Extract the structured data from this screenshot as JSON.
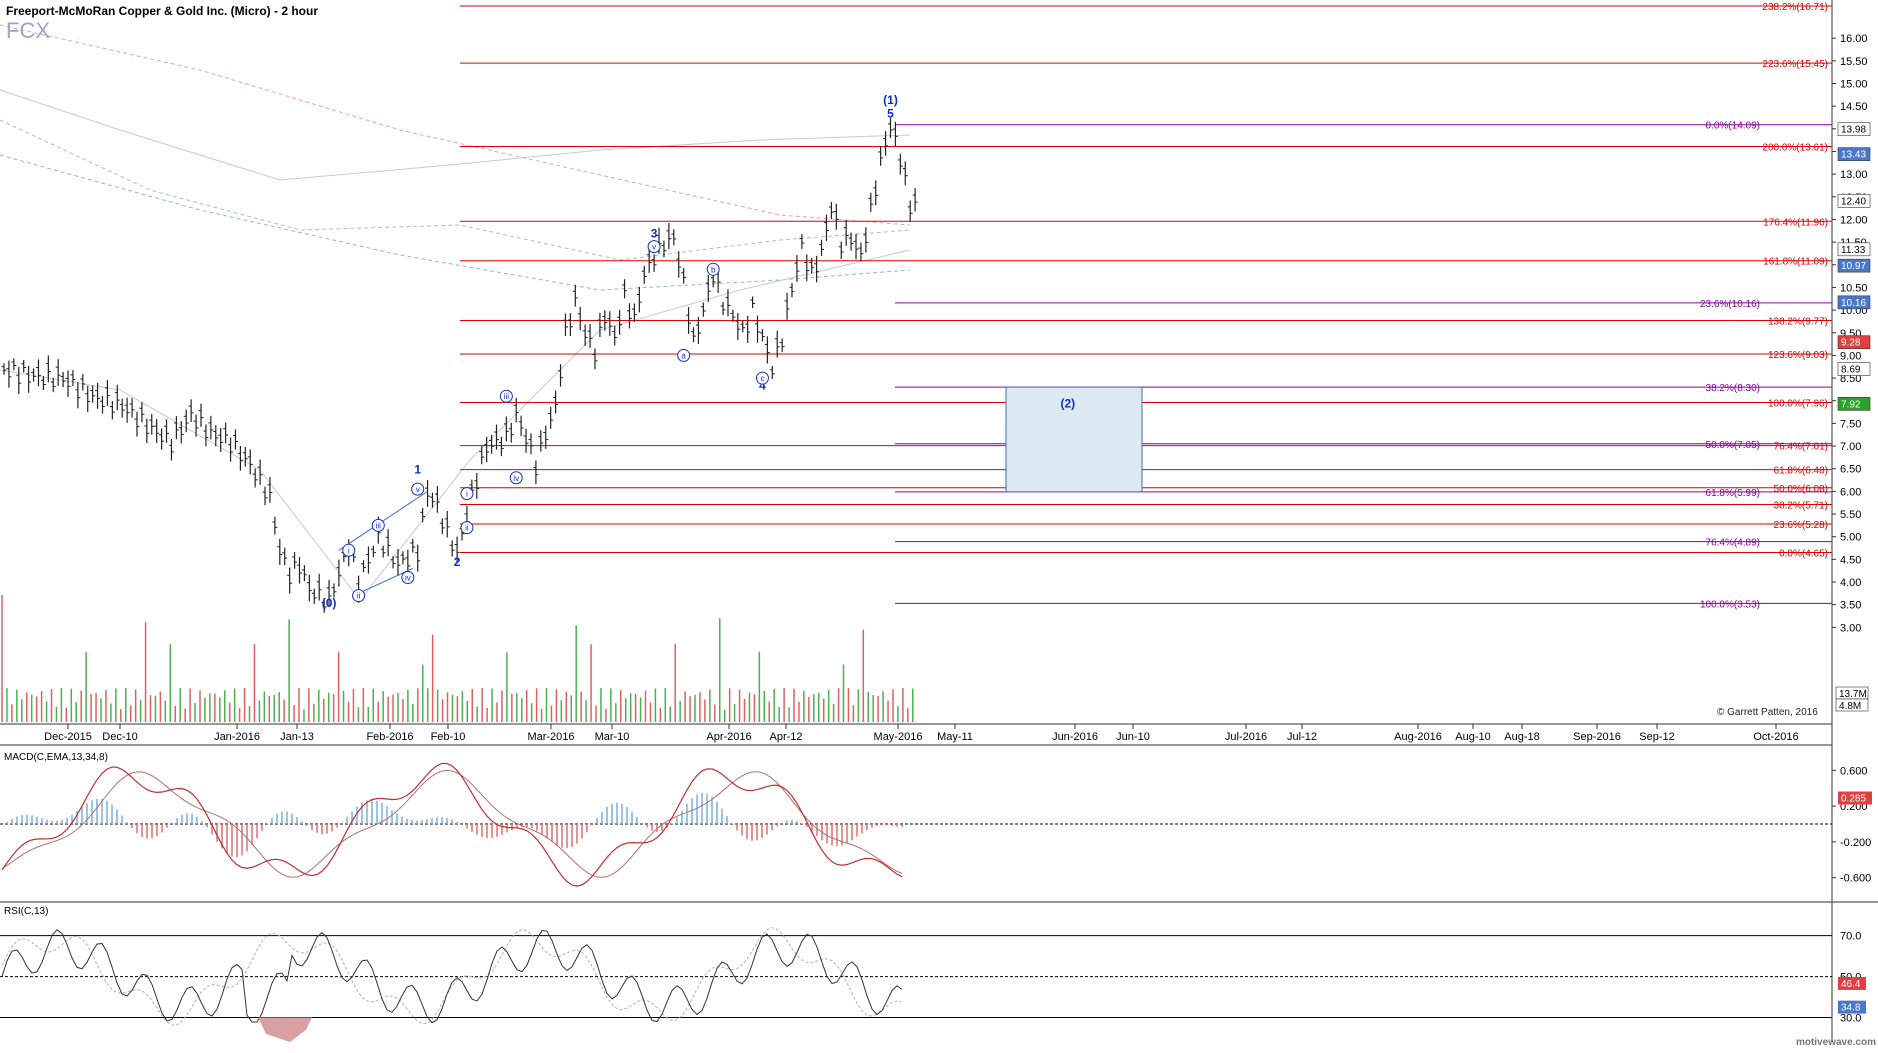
{
  "title": "Freeport-McMoRan Copper & Gold Inc. (Micro) - 2 hour",
  "symbol": "FCX",
  "copyright": "© Garrett Patten, 2016",
  "watermark": "motivewave.com",
  "colors": {
    "bar": "#222222",
    "fib_red": "#e00000",
    "fib_purple": "#8a00a0",
    "wave_blue": "#1030c0",
    "macd_line": "#c03030",
    "macd_signal": "#b07070",
    "hist_pos": "#7ab0e0",
    "hist_neg": "#e07070",
    "vol_green": "#4caf50",
    "vol_red": "#e06060"
  },
  "chart_data": [
    {
      "type": "line",
      "panel": "price",
      "y_range": [
        2.5,
        16.71
      ],
      "x_labels": [
        "Dec-2015",
        "Dec-10",
        "Jan-2016",
        "Jan-13",
        "Feb-2016",
        "Feb-10",
        "Mar-2016",
        "Mar-10",
        "Apr-2016",
        "Apr-12",
        "May-2016",
        "May-11",
        "Jun-2016",
        "Jun-10",
        "Jul-2016",
        "Jul-12",
        "Aug-2016",
        "Aug-10",
        "Aug-18",
        "Sep-2016",
        "Sep-12",
        "Oct-2016"
      ],
      "y_ticks": [
        "16.00",
        "15.50",
        "15.00",
        "14.50",
        "14.00",
        "13.50",
        "13.00",
        "12.50",
        "12.00",
        "11.50",
        "11.00",
        "10.50",
        "10.00",
        "9.50",
        "9.00",
        "8.50",
        "8.00",
        "7.50",
        "7.00",
        "6.50",
        "6.00",
        "5.50",
        "5.00",
        "4.50",
        "4.00",
        "3.50",
        "3.00"
      ],
      "price_path": [
        [
          0,
          8.7
        ],
        [
          3,
          8.55
        ],
        [
          6,
          8.5
        ],
        [
          9,
          8.1
        ],
        [
          12,
          7.9
        ],
        [
          15,
          7.4
        ],
        [
          17,
          7.1
        ],
        [
          19,
          7.7
        ],
        [
          21,
          7.3
        ],
        [
          23,
          7.1
        ],
        [
          25,
          6.6
        ],
        [
          27,
          5.9
        ],
        [
          28,
          4.7
        ],
        [
          29,
          4.2
        ],
        [
          30,
          4.4
        ],
        [
          31,
          3.85
        ],
        [
          33,
          3.6
        ],
        [
          35,
          4.8
        ],
        [
          36,
          4.0
        ],
        [
          38,
          5.0
        ],
        [
          40,
          4.4
        ],
        [
          42,
          4.7
        ],
        [
          43,
          6.0
        ],
        [
          44,
          5.7
        ],
        [
          45,
          5.1
        ],
        [
          46,
          4.65
        ],
        [
          47,
          5.5
        ],
        [
          48,
          6.3
        ],
        [
          49,
          7.0
        ],
        [
          51,
          7.2
        ],
        [
          52,
          7.7
        ],
        [
          53,
          7.2
        ],
        [
          54,
          6.6
        ],
        [
          55,
          7.3
        ],
        [
          56,
          7.9
        ],
        [
          57,
          9.5
        ],
        [
          58,
          10.2
        ],
        [
          59,
          9.5
        ],
        [
          60,
          9.1
        ],
        [
          61,
          9.9
        ],
        [
          62,
          9.4
        ],
        [
          63,
          10.3
        ],
        [
          64,
          9.8
        ],
        [
          65,
          10.8
        ],
        [
          66,
          11.2
        ],
        [
          67,
          11.5
        ],
        [
          68,
          11.6
        ],
        [
          69,
          10.6
        ],
        [
          70,
          9.3
        ],
        [
          71,
          10.0
        ],
        [
          72,
          10.8
        ],
        [
          73,
          10.2
        ],
        [
          74,
          9.9
        ],
        [
          75,
          9.5
        ],
        [
          76,
          10.0
        ],
        [
          77,
          9.4
        ],
        [
          78,
          8.75
        ],
        [
          79,
          9.4
        ],
        [
          80,
          10.5
        ],
        [
          81,
          11.4
        ],
        [
          82,
          10.8
        ],
        [
          83,
          11.3
        ],
        [
          84,
          12.3
        ],
        [
          85,
          11.5
        ],
        [
          86,
          11.6
        ],
        [
          87,
          11.2
        ],
        [
          88,
          12.2
        ],
        [
          89,
          13.3
        ],
        [
          90,
          14.09
        ],
        [
          91,
          13.4
        ],
        [
          92,
          12.3
        ],
        [
          93,
          12.5
        ]
      ],
      "wave_labels": [
        {
          "text": "(0)",
          "x": 33,
          "y": 3.45
        },
        {
          "text": "1",
          "x": 42,
          "y": 6.4
        },
        {
          "text": "2",
          "x": 46,
          "y": 4.35
        },
        {
          "text": "3",
          "x": 66,
          "y": 11.6
        },
        {
          "text": "4",
          "x": 77,
          "y": 8.25
        },
        {
          "text": "5",
          "x": 90,
          "y": 14.25
        },
        {
          "text": "(1)",
          "x": 90,
          "y": 14.55
        },
        {
          "text": "(2)",
          "x": 108,
          "y": 7.85
        }
      ],
      "subwave_labels": [
        {
          "text": "i",
          "x": 35,
          "y": 4.7
        },
        {
          "text": "ii",
          "x": 36,
          "y": 3.7
        },
        {
          "text": "iii",
          "x": 38,
          "y": 5.25
        },
        {
          "text": "iv",
          "x": 41,
          "y": 4.1
        },
        {
          "text": "v",
          "x": 42,
          "y": 6.05
        },
        {
          "text": "i",
          "x": 47,
          "y": 5.95
        },
        {
          "text": "ii",
          "x": 47,
          "y": 5.2
        },
        {
          "text": "iii",
          "x": 51,
          "y": 8.1
        },
        {
          "text": "iv",
          "x": 52,
          "y": 6.3
        },
        {
          "text": "v",
          "x": 66,
          "y": 11.4
        },
        {
          "text": "a",
          "x": 69,
          "y": 9.0
        },
        {
          "text": "b",
          "x": 72,
          "y": 10.9
        },
        {
          "text": "c",
          "x": 77,
          "y": 8.5
        }
      ],
      "fib_red": [
        {
          "label": "238.2%(16.71)",
          "value": 16.71
        },
        {
          "label": "223.6%(15.45)",
          "value": 15.45
        },
        {
          "label": "200.0%(13.61)",
          "value": 13.61
        },
        {
          "label": "176.4%(11.96)",
          "value": 11.96
        },
        {
          "label": "161.8%(11.09)",
          "value": 11.09
        },
        {
          "label": "138.2%(9.77)",
          "value": 9.77
        },
        {
          "label": "123.6%(9.03)",
          "value": 9.03
        },
        {
          "label": "100.0%(7.96)",
          "value": 7.96
        },
        {
          "label": "76.4%(7.01)",
          "value": 7.01
        },
        {
          "label": "61.8%(6.48)",
          "value": 6.48
        },
        {
          "label": "50.0%(6.08)",
          "value": 6.08
        },
        {
          "label": "38.2%(5.71)",
          "value": 5.71
        },
        {
          "label": "23.6%(5.28)",
          "value": 5.28
        },
        {
          "label": "0.0%(4.65)",
          "value": 4.65
        }
      ],
      "fib_purple": [
        {
          "label": "0.0%(14.09)",
          "value": 14.09
        },
        {
          "label": "23.6%(10.16)",
          "value": 10.16
        },
        {
          "label": "38.2%(8.30)",
          "value": 8.3
        },
        {
          "label": "50.0%(7.05)",
          "value": 7.05
        },
        {
          "label": "61.8%(5.99)",
          "value": 5.99
        },
        {
          "label": "76.4%(4.89)",
          "value": 4.89
        },
        {
          "label": "100.0%(3.53)",
          "value": 3.53
        }
      ],
      "target_box": {
        "low": 5.99,
        "high": 8.3,
        "x_start": 101,
        "x_end": 115
      },
      "price_tags": [
        {
          "text": "13.98",
          "value": 13.98,
          "bg": "#ffffff",
          "fg": "#000000"
        },
        {
          "text": "13.43",
          "value": 13.43,
          "bg": "#4a78c8",
          "fg": "#ffffff"
        },
        {
          "text": "12.40",
          "value": 12.4,
          "bg": "#ffffff",
          "fg": "#000000"
        },
        {
          "text": "11.33",
          "value": 11.33,
          "bg": "#ffffff",
          "fg": "#000000"
        },
        {
          "text": "10.97",
          "value": 10.97,
          "bg": "#4a78c8",
          "fg": "#ffffff"
        },
        {
          "text": "10.16",
          "value": 10.16,
          "bg": "#4a78c8",
          "fg": "#ffffff"
        },
        {
          "text": "9.28",
          "value": 9.28,
          "bg": "#e04040",
          "fg": "#ffffff"
        },
        {
          "text": "8.69",
          "value": 8.69,
          "bg": "#ffffff",
          "fg": "#000000"
        },
        {
          "text": "7.92",
          "value": 7.92,
          "bg": "#2ca02c",
          "fg": "#ffffff"
        }
      ],
      "volume_tags": [
        "13.7M",
        "4.8M"
      ]
    },
    {
      "type": "line",
      "panel": "macd",
      "label": "MACD(C,EMA,13,34,8)",
      "y_ticks": [
        "0.600",
        "0.200",
        "-0.200",
        "-0.600"
      ],
      "y_range": [
        -0.85,
        0.85
      ],
      "value_tag": "0.285"
    },
    {
      "type": "line",
      "panel": "rsi",
      "label": "RSI(C,13)",
      "y_ticks": [
        "70.0",
        "50.0",
        "30.0"
      ],
      "y_range": [
        18,
        85
      ],
      "value_tags": [
        "46.4",
        "34.8"
      ]
    }
  ]
}
